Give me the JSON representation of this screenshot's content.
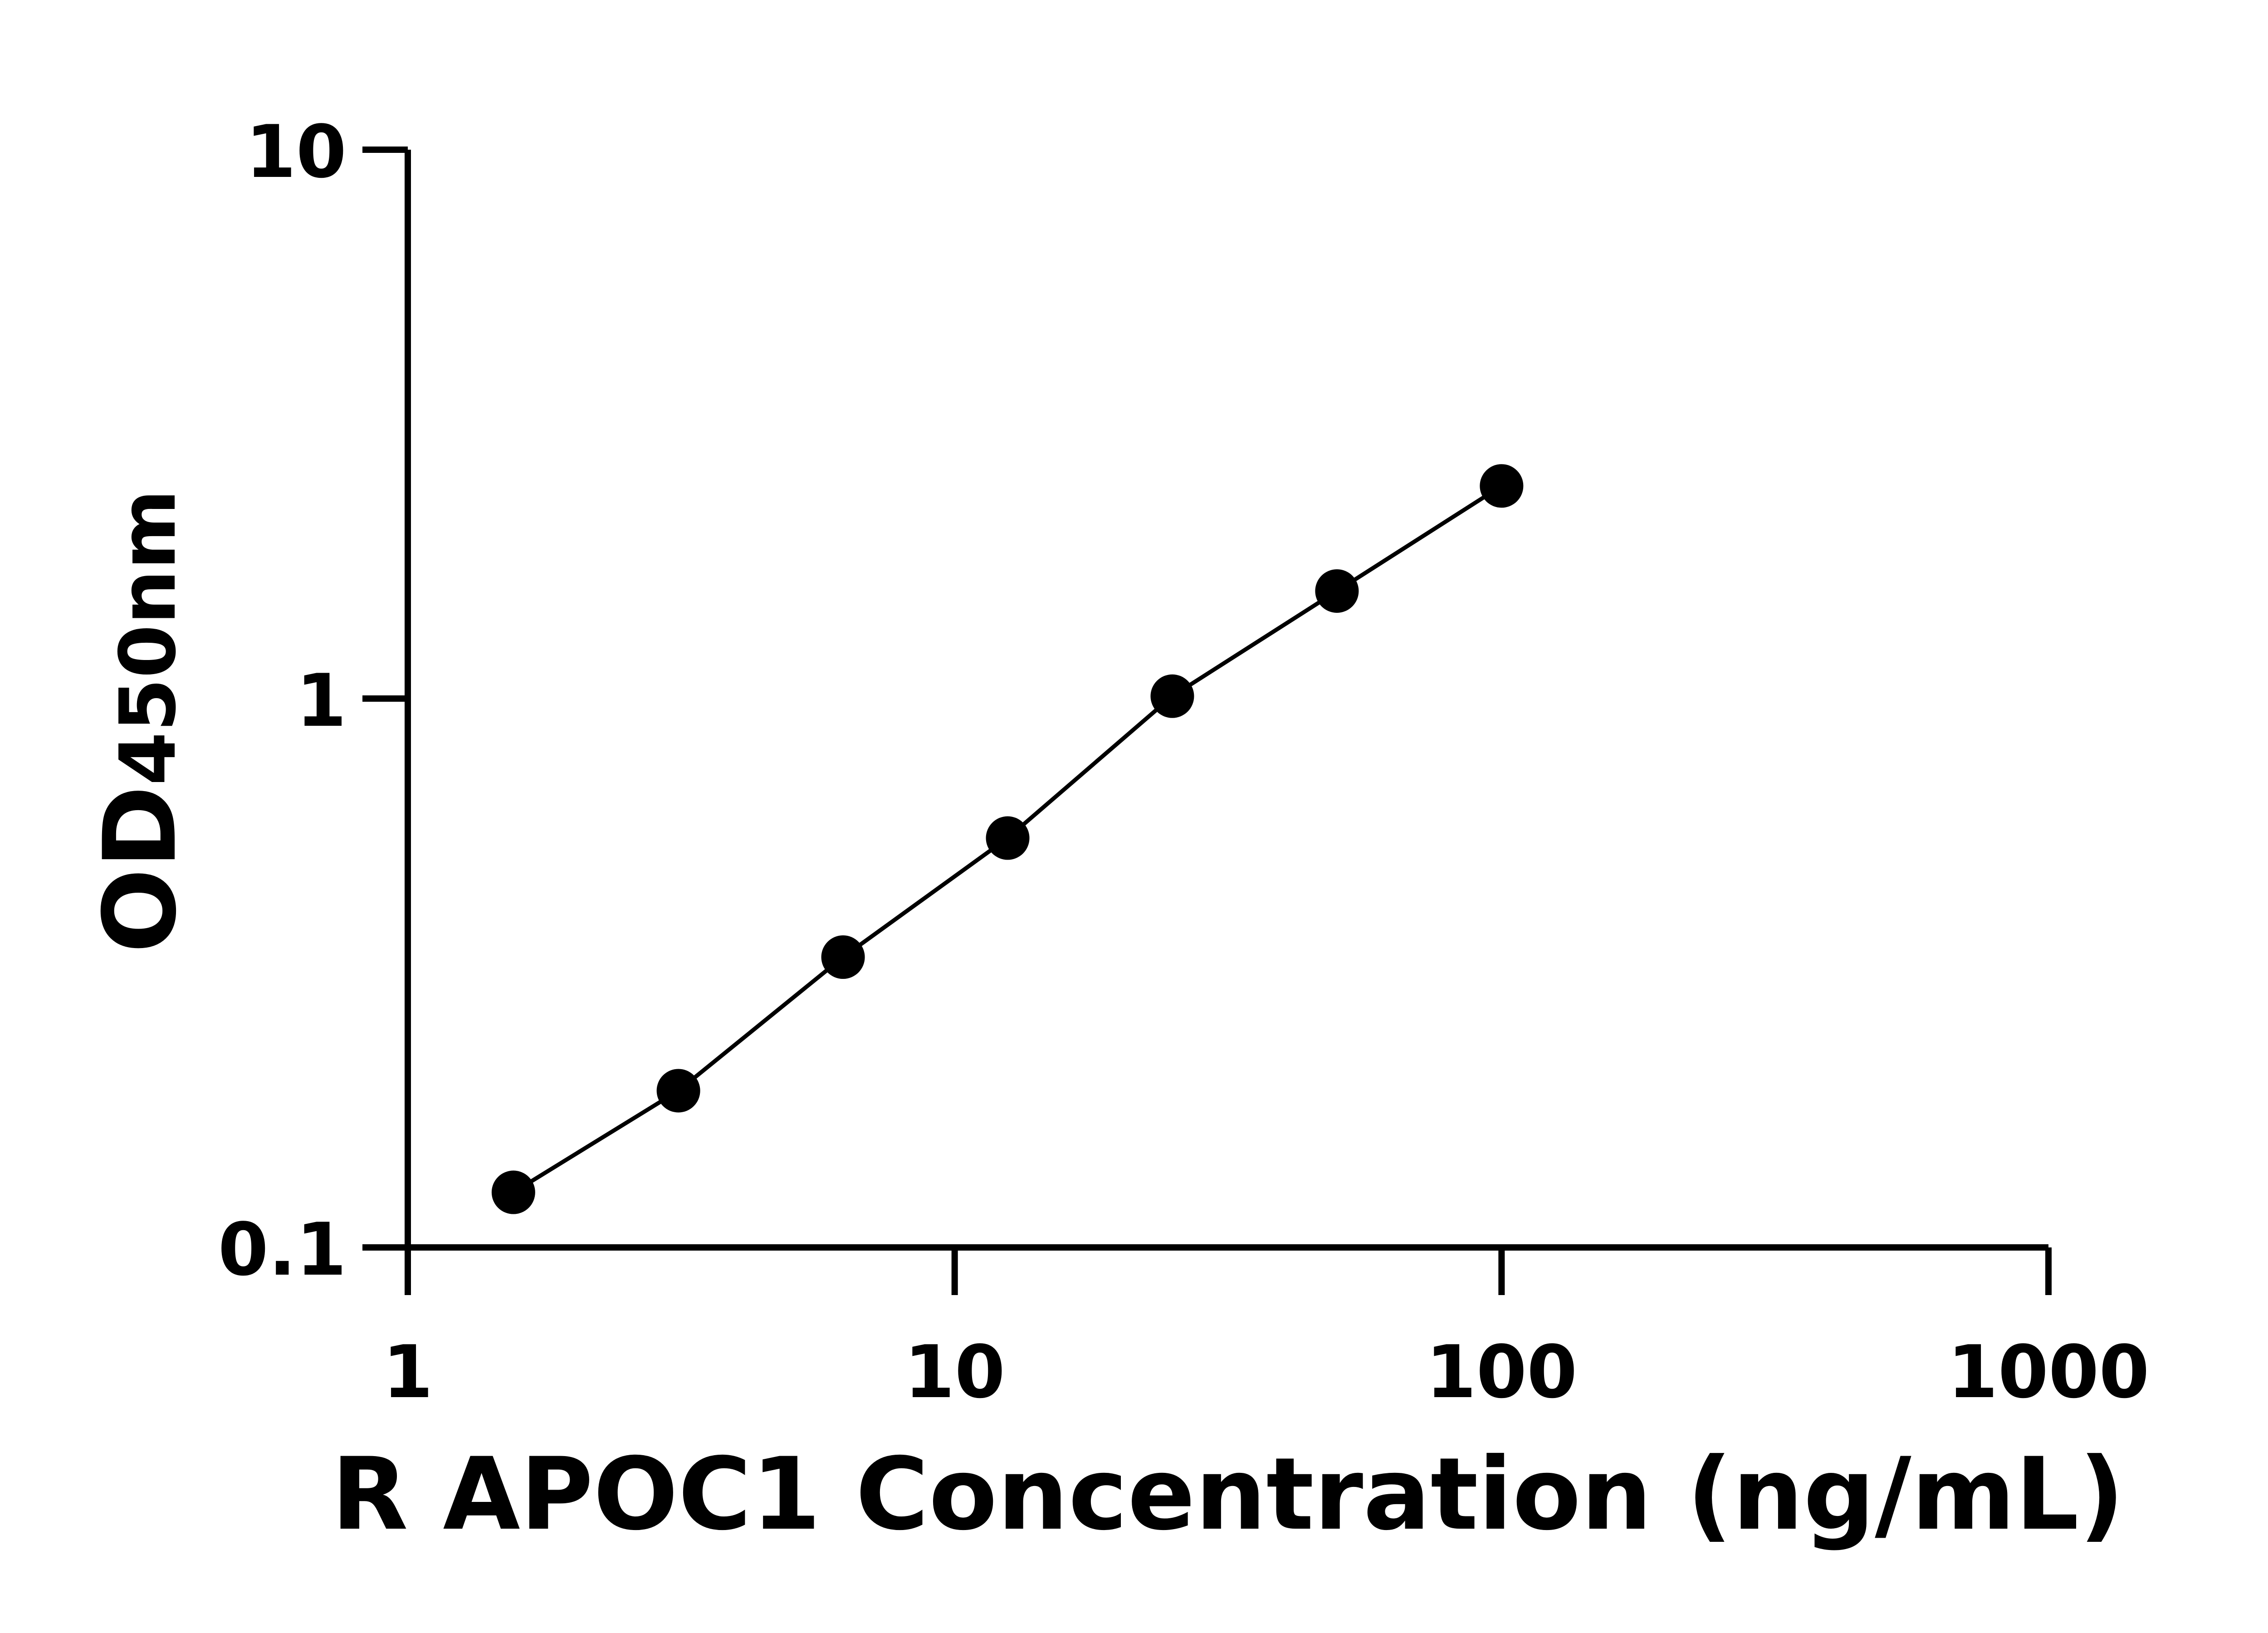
{
  "chart_data": {
    "type": "scatter",
    "title": "",
    "xlabel": "R APOC1 Concentration (ng/mL)",
    "ylabel_main": "OD",
    "ylabel_sub": "450nm",
    "x_scale": "log",
    "y_scale": "log",
    "xlim": [
      1,
      1000
    ],
    "ylim": [
      0.1,
      10
    ],
    "x_ticks": [
      1,
      10,
      100,
      1000
    ],
    "x_tick_labels": [
      "1",
      "10",
      "100",
      "1000"
    ],
    "y_ticks": [
      0.1,
      1,
      10
    ],
    "y_tick_labels": [
      "0.1",
      "1",
      "10"
    ],
    "grid": false,
    "legend": "none",
    "marker_color": "#000000",
    "line_color": "#000000",
    "series": [
      {
        "x": [
          1.56,
          3.125,
          6.25,
          12.5,
          25,
          50,
          100
        ],
        "y": [
          0.126,
          0.193,
          0.338,
          0.557,
          1.01,
          1.57,
          2.44
        ]
      }
    ]
  }
}
